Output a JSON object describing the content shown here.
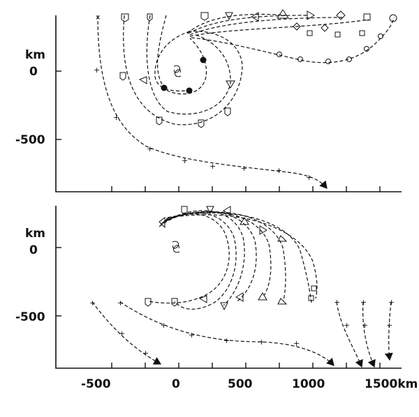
{
  "figure": {
    "y_unit": "km",
    "x_unit": "km",
    "storm_center_symbol": "tropical-cyclone-symbol",
    "panels": [
      {
        "id": "upper",
        "y_ticks": [
          {
            "value": 0,
            "label": "0"
          },
          {
            "value": -500,
            "label": "-500"
          }
        ]
      },
      {
        "id": "lower",
        "y_ticks": [
          {
            "value": 0,
            "label": "0"
          },
          {
            "value": -500,
            "label": "-500"
          }
        ]
      }
    ],
    "x_ticks": [
      {
        "value": -500,
        "label": "-500"
      },
      {
        "value": 0,
        "label": "0"
      },
      {
        "value": 500,
        "label": "500"
      },
      {
        "value": 1000,
        "label": "1000"
      },
      {
        "value": 1500,
        "label": "1500km"
      }
    ]
  }
}
